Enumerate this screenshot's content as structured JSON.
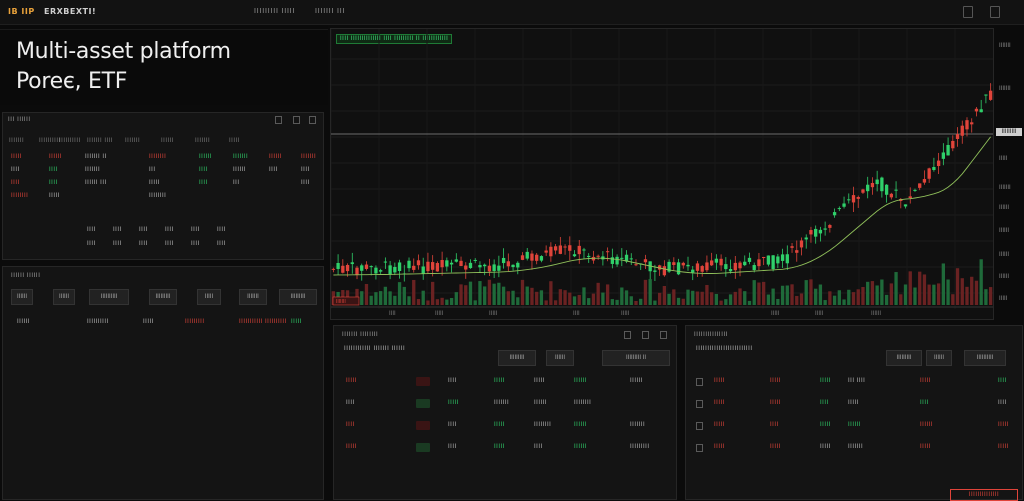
{
  "topbar": {
    "tag": "IB IIP",
    "brand": "ERXBEXTI!",
    "nav": [
      "IIIIIIIII IIIII",
      "IIIIIII III"
    ]
  },
  "hero": {
    "title": "Multi-asset platform",
    "subtitle": "Poreє, ETF"
  },
  "watchlist": {
    "title": "III IIIIII",
    "headers": [
      "IIIIIII",
      "IIIIIIIIII",
      "IIIIIIIIII",
      "IIIIIII IIII",
      "IIIIIII",
      "IIIIII",
      "IIIIIII",
      "IIIII"
    ],
    "rows": [
      {
        "a": "IIIII",
        "b": "IIIIII",
        "c": "IIIIIII II",
        "d": "IIIIIIII",
        "e": "IIIIII",
        "f": "IIIIIII",
        "g": "IIIIII",
        "h": "IIIIIII"
      },
      {
        "a": "IIII",
        "b": "IIII",
        "c": "IIIIIII",
        "d": "III",
        "e": "IIII",
        "f": "IIIIII",
        "g": "IIII",
        "h": "IIII"
      },
      {
        "a": "IIII",
        "b": "IIII",
        "c": "IIIIII III",
        "d": "IIIII",
        "e": "IIII",
        "f": "III",
        "g": "",
        "h": "IIII"
      },
      {
        "a": "IIIIIIII",
        "b": "IIIII",
        "c": "",
        "d": "IIIIIIII",
        "e": "",
        "f": "",
        "g": "",
        "h": ""
      }
    ],
    "grid": [
      "IIII",
      "IIII",
      "IIII",
      "IIII",
      "IIII",
      "IIII",
      "IIII",
      "IIII",
      "IIII",
      "IIII",
      "IIII",
      "IIII"
    ]
  },
  "orders": {
    "title": "IIIIII IIIIII",
    "headers": [
      "IIIIII",
      "IIIIII",
      "IIIIIIIIII",
      "IIIIIIIII",
      "IIIII",
      "IIIIIII",
      "IIIIIIIII"
    ],
    "row": [
      "IIIIII",
      "IIIIIIIIII",
      "IIIII",
      "IIIIIIIII",
      "IIIIIIIIIII",
      "IIIIIIIIII",
      "IIIII"
    ]
  },
  "chart": {
    "title": "IIII IIIIIIIIIIIIII IIII IIIIIIIII II IIIIIIIIIIII",
    "y_labels": [
      "IIIIIII",
      "IIIIIII",
      "IIIII",
      "IIIIIII",
      "IIIIII",
      "IIIIII",
      "IIIIII",
      "IIIIII",
      "IIIII"
    ],
    "x_labels": [
      "IIII",
      "IIIII",
      "IIIII",
      "IIII",
      "IIIII",
      "IIIII",
      "IIIII",
      "IIIIII"
    ],
    "current_price": "IIIIIIIII",
    "left_badge": "IIIIIII"
  },
  "blotter_left": {
    "title": "IIIIIII IIIIIIII",
    "sub": "IIIIIIIIIIII IIIIIII IIIIII",
    "btns": [
      "IIIIIIIII",
      "IIIIII",
      "IIIIIIIII II"
    ],
    "rows": [
      [
        "IIIII",
        "IIII",
        "IIIII",
        "IIIII",
        "IIIIII",
        "IIIIII"
      ],
      [
        "IIII",
        "IIIII",
        "IIIIIII",
        "IIIIII",
        "IIIIIIII"
      ],
      [
        "IIII",
        "IIII",
        "IIIII",
        "IIIIIIII",
        "IIIIII",
        "IIIIIII"
      ],
      [
        "IIIII",
        "IIII",
        "IIIII",
        "IIII",
        "IIIIII",
        "IIIIIIIII"
      ]
    ]
  },
  "blotter_right": {
    "title": "IIIIIIIIIIIIIII",
    "sub": "IIIIIIIIIIIIIIIIIIIIIIIII",
    "btns": [
      "IIIIIIIII",
      "IIIIII",
      "IIIIIIIIII"
    ],
    "rows": [
      [
        "IIIII",
        "IIIII",
        "IIIII",
        "III IIII",
        "IIIII",
        "IIII"
      ],
      [
        "IIIII",
        "IIIII",
        "IIII",
        "IIIII",
        "IIII",
        "IIII"
      ],
      [
        "IIIII",
        "IIII",
        "IIIII",
        "IIIIII",
        "IIIIII",
        "IIIII"
      ],
      [
        "IIIII",
        "IIIII",
        "IIIII",
        "IIIIIII",
        "IIIII",
        "IIIII"
      ]
    ]
  },
  "footer_badge": "IIIIIIIIIIIIII",
  "colors": {
    "red": "#e0443a",
    "green": "#2fd06a",
    "bg": "#0b0b0b",
    "panel": "#141414"
  }
}
